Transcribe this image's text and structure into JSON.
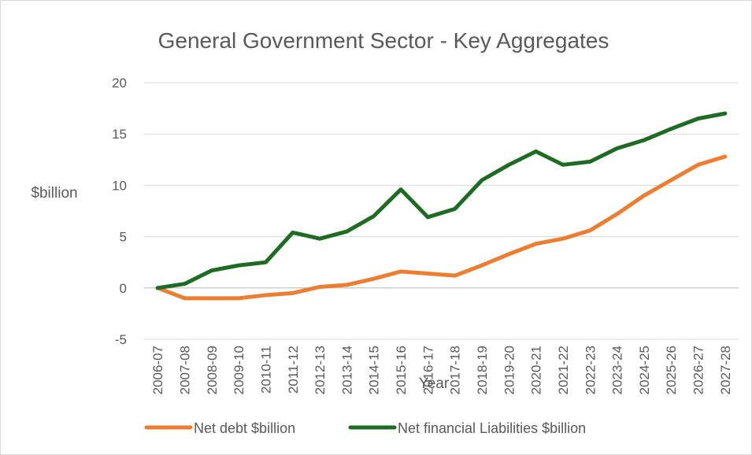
{
  "chart_data": {
    "type": "line",
    "title": "General Government Sector - Key Aggregates",
    "xlabel": "Year",
    "ylabel": "$billion",
    "ylim": [
      -5,
      20
    ],
    "yticks": [
      -5,
      0,
      5,
      10,
      15,
      20
    ],
    "grid": true,
    "legend_position": "bottom",
    "categories": [
      "2006-07",
      "2007-08",
      "2008-09",
      "2009-10",
      "2010-11",
      "2011-12",
      "2012-13",
      "2013-14",
      "2014-15",
      "2015-16",
      "2016-17",
      "2017-18",
      "2018-19",
      "2019-20",
      "2020-21",
      "2021-22",
      "2022-23",
      "2023-24",
      "2024-25",
      "2025-26",
      "2026-27",
      "2027-28"
    ],
    "series": [
      {
        "name": "Net debt $billion",
        "color": "#ed7d31",
        "values": [
          0,
          -1.0,
          -1.0,
          -1.0,
          -0.7,
          -0.5,
          0.1,
          0.3,
          0.9,
          1.6,
          1.4,
          1.2,
          2.2,
          3.3,
          4.3,
          4.8,
          5.6,
          7.2,
          9.0,
          10.5,
          12.0,
          12.8
        ]
      },
      {
        "name": "Net financial Liabilities $billion",
        "color": "#1e6b24",
        "values": [
          0,
          0.4,
          1.7,
          2.2,
          2.5,
          5.4,
          4.8,
          5.5,
          7.0,
          9.6,
          6.9,
          7.7,
          10.5,
          12.0,
          13.3,
          12.0,
          12.3,
          13.6,
          14.4,
          15.5,
          16.5,
          17.0
        ]
      }
    ]
  }
}
